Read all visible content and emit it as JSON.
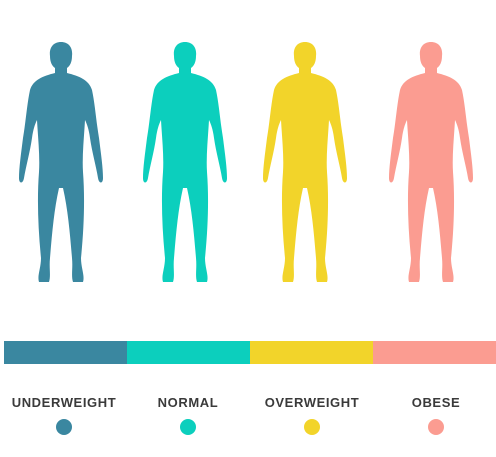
{
  "categories": [
    {
      "id": "underweight",
      "label": "UNDERWEIGHT",
      "color": "#3a87a0"
    },
    {
      "id": "normal",
      "label": "NORMAL",
      "color": "#0ccfbd"
    },
    {
      "id": "overweight",
      "label": "OVERWEIGHT",
      "color": "#f2d42a"
    },
    {
      "id": "obese",
      "label": "OBESE",
      "color": "#fb9c91"
    }
  ]
}
